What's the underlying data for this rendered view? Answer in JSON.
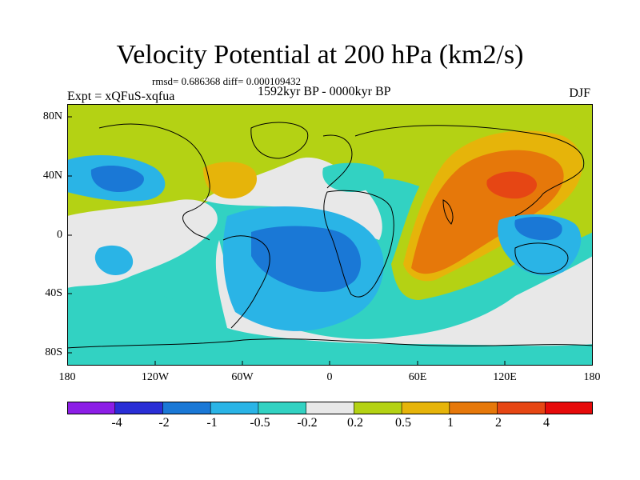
{
  "title": "Velocity Potential at 200 hPa (km2/s)",
  "stats": "rmsd= 0.686368 diff= 0.000109432",
  "experiment": "Expt = xQFuS-xqfua",
  "period": "1592kyr BP - 0000kyr BP",
  "season": "DJF",
  "axes": {
    "y_ticks": [
      "80N",
      "40N",
      "0",
      "40S",
      "80S"
    ],
    "x_ticks": [
      "180",
      "120W",
      "60W",
      "0",
      "60E",
      "120E",
      "180"
    ]
  },
  "colorbar": {
    "labels": [
      "-4",
      "-2",
      "-1",
      "-0.5",
      "-0.2",
      "0.2",
      "0.5",
      "1",
      "2",
      "4"
    ],
    "colors": [
      "#8c1ee6",
      "#2a2ed6",
      "#1a78d6",
      "#2ab4e6",
      "#32d2c2",
      "#e8e8e8",
      "#b4d214",
      "#e6b40a",
      "#e6780a",
      "#e64614",
      "#e60a0a"
    ]
  }
}
